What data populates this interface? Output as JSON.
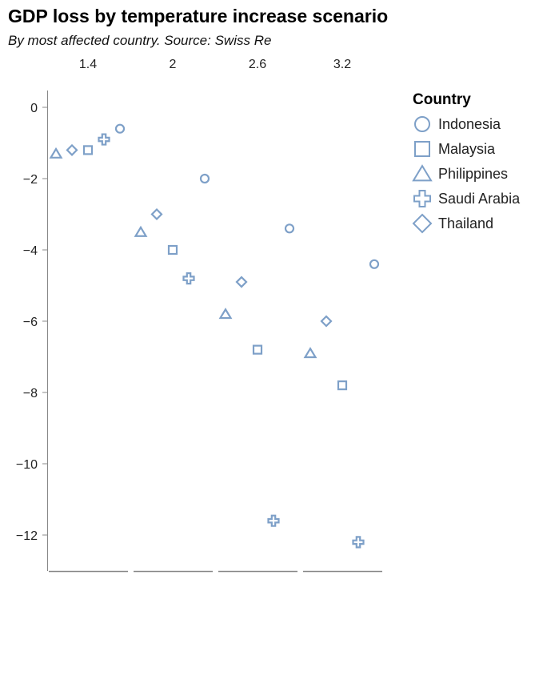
{
  "chart_data": {
    "type": "scatter",
    "title": "GDP loss by temperature increase scenario",
    "subtitle": "By most affected country. Source: Swiss Re",
    "facets": [
      "1.4",
      "2",
      "2.6",
      "3.2"
    ],
    "y_ticks": [
      "0",
      "−2",
      "−4",
      "−6",
      "−8",
      "−10",
      "−12"
    ],
    "ylim": [
      -13,
      0.5
    ],
    "legend_title": "Country",
    "legend_placement": "top-right",
    "grid": false,
    "colors": {
      "mark": "#7ea0c8"
    },
    "series": [
      {
        "name": "Indonesia",
        "shape": "circle",
        "values": [
          -0.6,
          -2.0,
          -3.4,
          -4.4
        ]
      },
      {
        "name": "Malaysia",
        "shape": "square",
        "values": [
          -1.2,
          -4.0,
          -6.8,
          -7.8
        ]
      },
      {
        "name": "Philippines",
        "shape": "triangle",
        "values": [
          -1.3,
          -3.5,
          -5.8,
          -6.9
        ]
      },
      {
        "name": "Saudi Arabia",
        "shape": "cross",
        "values": [
          -0.9,
          -4.8,
          -11.6,
          -12.2
        ]
      },
      {
        "name": "Thailand",
        "shape": "diamond",
        "values": [
          -1.2,
          -3.0,
          -4.9,
          -6.0
        ]
      }
    ]
  }
}
